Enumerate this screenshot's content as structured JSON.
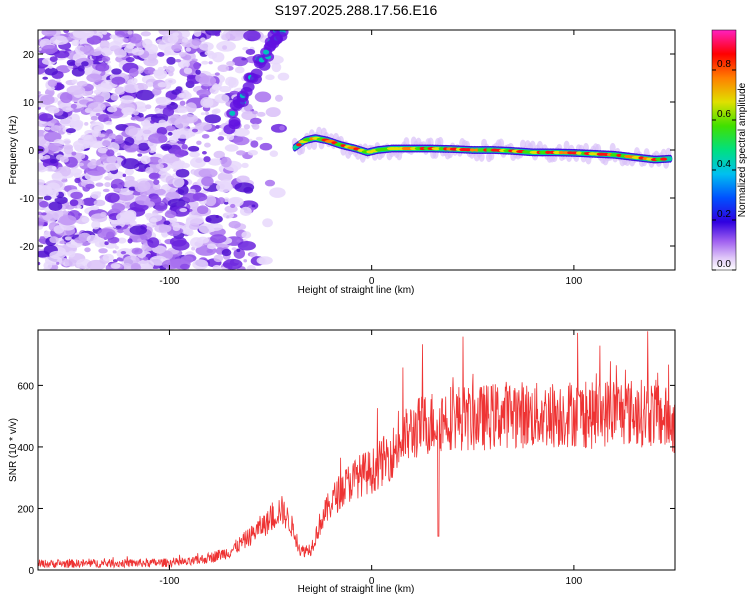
{
  "title": "S197.2025.288.17.56.E16",
  "chart_data": [
    {
      "type": "heatmap",
      "xlabel": "Height of straight line (km)",
      "ylabel": "Frequency (Hz)",
      "xlim": [
        -165,
        150
      ],
      "ylim": [
        -25,
        25
      ],
      "xticks": [
        -100,
        0,
        100
      ],
      "yticks": [
        -20,
        -10,
        0,
        10,
        20
      ],
      "colorbar": {
        "label": "Normalized spectral amplitude",
        "range": [
          0,
          0.96
        ],
        "ticks": [
          0.0,
          0.2,
          0.4,
          0.6,
          0.8
        ],
        "tick_labels": [
          "0.0",
          "0.2",
          "0.4",
          "0.6",
          "0.8"
        ],
        "colormap": "rainbow"
      },
      "ridge": {
        "description_values": "dominant frequency trace (km, Hz)",
        "x": [
          -38,
          -33,
          -28,
          -22,
          -15,
          -8,
          -2,
          3,
          10,
          20,
          30,
          40,
          50,
          60,
          70,
          80,
          90,
          100,
          110,
          120,
          130,
          140,
          148
        ],
        "y": [
          0.5,
          2.0,
          2.5,
          2.0,
          1.0,
          0.3,
          -0.5,
          0.0,
          0.3,
          0.3,
          0.3,
          0.2,
          0.0,
          0.0,
          -0.2,
          -0.5,
          -0.5,
          -0.6,
          -0.8,
          -1.0,
          -1.5,
          -2.0,
          -1.8
        ]
      },
      "upper_arc": {
        "x": [
          -70,
          -65,
          -60,
          -55,
          -50,
          -47,
          -44
        ],
        "y": [
          5,
          10,
          14,
          18,
          22,
          24,
          25
        ]
      },
      "noise_region_x": [
        -165,
        -40
      ]
    },
    {
      "type": "line",
      "xlabel": "Height of straight line (km)",
      "ylabel": "SNR (10 * v/v)",
      "xlim": [
        -165,
        150
      ],
      "ylim": [
        0,
        780
      ],
      "xticks": [
        -100,
        0,
        100
      ],
      "yticks": [
        0,
        200,
        400,
        600
      ],
      "color": "#ee3333",
      "series_envelope": {
        "x": [
          -165,
          -120,
          -90,
          -80,
          -70,
          -60,
          -55,
          -50,
          -45,
          -40,
          -35,
          -30,
          -25,
          -20,
          -15,
          -10,
          -5,
          0,
          5,
          10,
          15,
          20,
          25,
          30,
          35,
          40,
          50,
          60,
          70,
          80,
          90,
          100,
          110,
          120,
          130,
          140,
          148
        ],
        "y": [
          20,
          22,
          25,
          40,
          60,
          110,
          140,
          160,
          200,
          150,
          60,
          70,
          160,
          220,
          260,
          290,
          310,
          320,
          350,
          380,
          420,
          450,
          470,
          480,
          490,
          500,
          490,
          500,
          510,
          500,
          505,
          510,
          500,
          520,
          510,
          510,
          480
        ]
      },
      "dip": {
        "x": 33,
        "y": 110
      }
    }
  ]
}
